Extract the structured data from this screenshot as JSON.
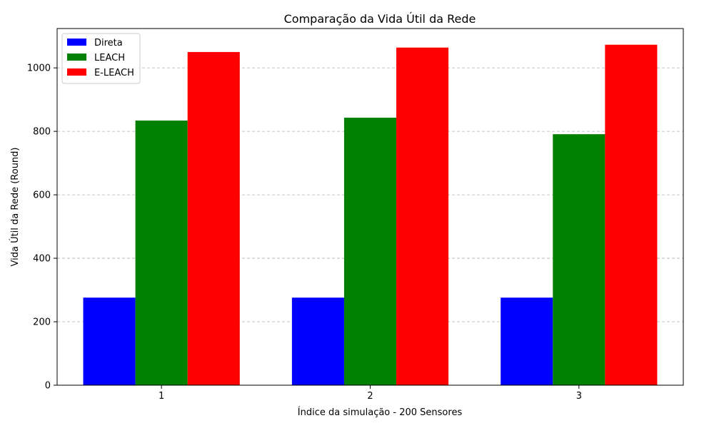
{
  "chart_data": {
    "type": "bar",
    "title": "Comparação da Vida Útil da Rede",
    "xlabel": "Índice da simulação - 200 Sensores",
    "ylabel": "Vida Útil da Rede (Round)",
    "categories": [
      "1",
      "2",
      "3"
    ],
    "series": [
      {
        "name": "Direta",
        "color": "#0000ff",
        "values": [
          276,
          276,
          276
        ]
      },
      {
        "name": "LEACH",
        "color": "#008000",
        "values": [
          834,
          843,
          791
        ]
      },
      {
        "name": "E-LEACH",
        "color": "#ff0000",
        "values": [
          1050,
          1064,
          1073
        ]
      }
    ],
    "ylim": [
      0,
      1124
    ],
    "yticks": [
      0,
      200,
      400,
      600,
      800,
      1000
    ],
    "grid": "y-dashed",
    "legend_position": "top-left"
  }
}
